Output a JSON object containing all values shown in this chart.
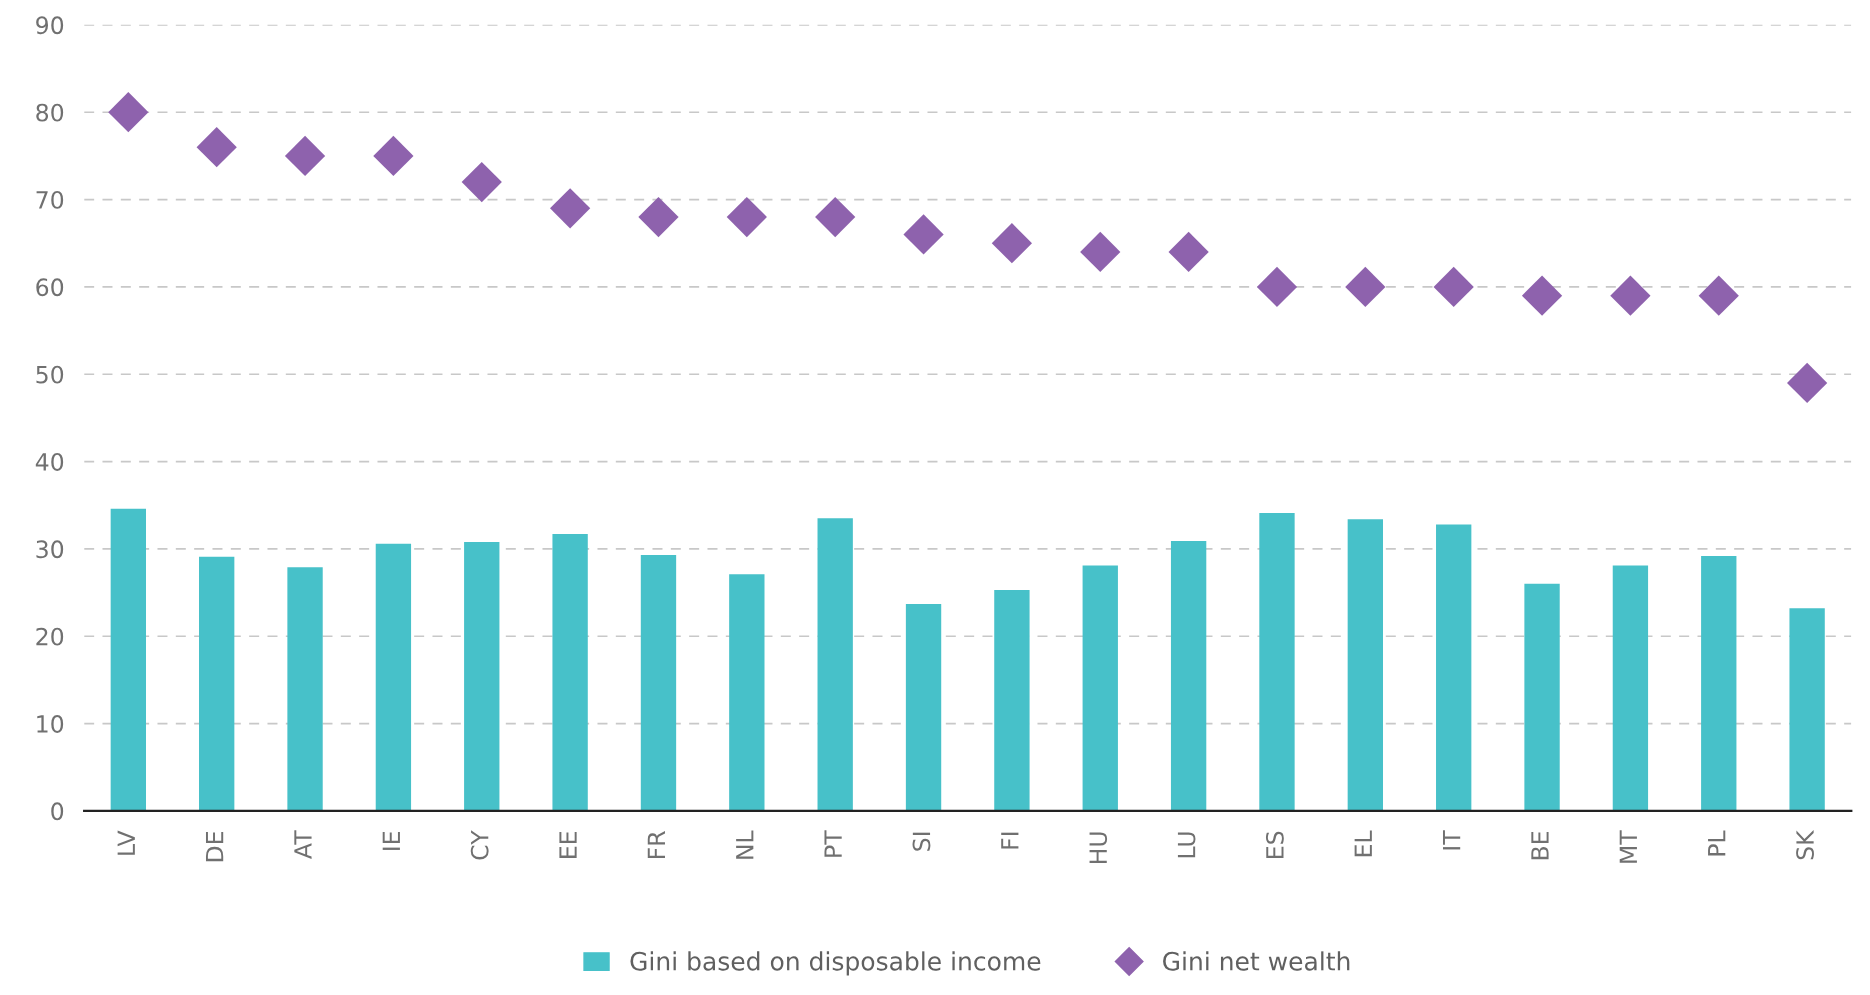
{
  "chart_data": {
    "type": "bar",
    "categories": [
      "LV",
      "DE",
      "AT",
      "IE",
      "CY",
      "EE",
      "FR",
      "NL",
      "PT",
      "SI",
      "FI",
      "HU",
      "LU",
      "ES",
      "EL",
      "IT",
      "BE",
      "MT",
      "PL",
      "SK"
    ],
    "series": [
      {
        "name": "Gini based on disposable income",
        "color": "#47c1c9",
        "values": [
          34.6,
          29.1,
          27.9,
          30.6,
          30.8,
          31.7,
          29.3,
          27.1,
          33.5,
          23.7,
          25.3,
          28.1,
          30.9,
          34.1,
          33.4,
          32.8,
          26.0,
          28.1,
          29.2,
          23.2
        ]
      },
      {
        "name": "Gini net wealth",
        "color": "#8e62ad",
        "type": "scatter",
        "marker": "diamond",
        "values": [
          80,
          76,
          75,
          75,
          72,
          69,
          68,
          68,
          68,
          66,
          65,
          64,
          64,
          60,
          60,
          60,
          59,
          59,
          59,
          49
        ]
      }
    ],
    "ylim": [
      0,
      90
    ],
    "yticks": [
      0,
      10,
      20,
      30,
      40,
      50,
      60,
      70,
      80,
      90
    ],
    "grid": "y",
    "legend": "bottom"
  }
}
